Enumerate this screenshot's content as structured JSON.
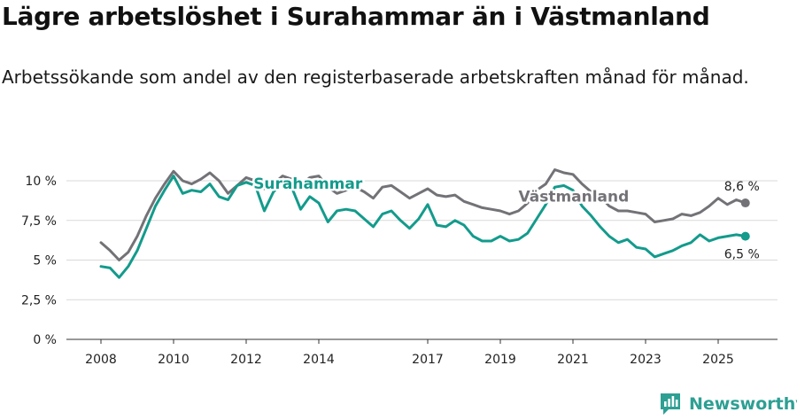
{
  "title": "Lägre arbetslöshet i Surahammar än i Västmanland",
  "subtitle": "Arbetssökande som andel av den registerbaserade arbetskraften månad för månad.",
  "brand": {
    "name": "Newsworthy",
    "icon": "newsworthy-logo-icon",
    "color": "#2d9f93"
  },
  "chart_data": {
    "type": "line",
    "title": "Lägre arbetslöshet i Surahammar än i Västmanland",
    "xlabel": "",
    "ylabel": "",
    "xlim": [
      2007.5,
      2026.4
    ],
    "ylim": [
      0,
      10
    ],
    "grid": true,
    "x_ticks": [
      {
        "value": 2008,
        "label": "2008"
      },
      {
        "value": 2010,
        "label": "2010"
      },
      {
        "value": 2012,
        "label": "2012"
      },
      {
        "value": 2014,
        "label": "2014"
      },
      {
        "value": 2017,
        "label": "2017"
      },
      {
        "value": 2019,
        "label": "2019"
      },
      {
        "value": 2021,
        "label": "2021"
      },
      {
        "value": 2023,
        "label": "2023"
      },
      {
        "value": 2025,
        "label": "2025"
      }
    ],
    "y_ticks": [
      {
        "value": 0,
        "label": "0 %"
      },
      {
        "value": 2.5,
        "label": "2,5 %"
      },
      {
        "value": 5,
        "label": "5 %"
      },
      {
        "value": 7.5,
        "label": "7,5 %"
      },
      {
        "value": 10,
        "label": "10 %"
      }
    ],
    "series": [
      {
        "name": "Västmanland",
        "color": "#737277",
        "label_at": [
          2019.5,
          8.7
        ],
        "end_label": "8,6 %",
        "end_value": 8.6,
        "x": [
          2008.0,
          2008.25,
          2008.5,
          2008.75,
          2009.0,
          2009.25,
          2009.5,
          2009.75,
          2010.0,
          2010.25,
          2010.5,
          2010.75,
          2011.0,
          2011.25,
          2011.5,
          2011.75,
          2012.0,
          2012.25,
          2012.5,
          2012.75,
          2013.0,
          2013.25,
          2013.5,
          2013.75,
          2014.0,
          2014.25,
          2014.5,
          2014.75,
          2015.0,
          2015.25,
          2015.5,
          2015.75,
          2016.0,
          2016.25,
          2016.5,
          2016.75,
          2017.0,
          2017.25,
          2017.5,
          2017.75,
          2018.0,
          2018.25,
          2018.5,
          2018.75,
          2019.0,
          2019.25,
          2019.5,
          2019.75,
          2020.0,
          2020.25,
          2020.5,
          2020.75,
          2021.0,
          2021.25,
          2021.5,
          2021.75,
          2022.0,
          2022.25,
          2022.5,
          2022.75,
          2023.0,
          2023.25,
          2023.5,
          2023.75,
          2024.0,
          2024.25,
          2024.5,
          2024.75,
          2025.0,
          2025.25,
          2025.5,
          2025.75
        ],
        "values": [
          6.1,
          5.6,
          5.0,
          5.5,
          6.5,
          7.8,
          8.9,
          9.8,
          10.6,
          10.0,
          9.8,
          10.1,
          10.5,
          10.0,
          9.2,
          9.7,
          10.2,
          10.0,
          9.5,
          9.8,
          10.3,
          10.1,
          9.7,
          10.2,
          10.3,
          9.6,
          9.2,
          9.4,
          9.6,
          9.3,
          8.9,
          9.6,
          9.7,
          9.3,
          8.9,
          9.2,
          9.5,
          9.1,
          9.0,
          9.1,
          8.7,
          8.5,
          8.3,
          8.2,
          8.1,
          7.9,
          8.1,
          8.6,
          9.4,
          9.8,
          10.7,
          10.5,
          10.4,
          9.8,
          9.3,
          9.0,
          8.4,
          8.1,
          8.1,
          8.0,
          7.9,
          7.4,
          7.5,
          7.6,
          7.9,
          7.8,
          8.0,
          8.4,
          8.9,
          8.5,
          8.8,
          8.6
        ]
      },
      {
        "name": "Surahammar",
        "color": "#139b8c",
        "label_at": [
          2012.2,
          9.5
        ],
        "end_label": "6,5 %",
        "end_value": 6.5,
        "x": [
          2008.0,
          2008.25,
          2008.5,
          2008.75,
          2009.0,
          2009.25,
          2009.5,
          2009.75,
          2010.0,
          2010.25,
          2010.5,
          2010.75,
          2011.0,
          2011.25,
          2011.5,
          2011.75,
          2012.0,
          2012.25,
          2012.5,
          2012.75,
          2013.0,
          2013.25,
          2013.5,
          2013.75,
          2014.0,
          2014.25,
          2014.5,
          2014.75,
          2015.0,
          2015.25,
          2015.5,
          2015.75,
          2016.0,
          2016.25,
          2016.5,
          2016.75,
          2017.0,
          2017.25,
          2017.5,
          2017.75,
          2018.0,
          2018.25,
          2018.5,
          2018.75,
          2019.0,
          2019.25,
          2019.5,
          2019.75,
          2020.0,
          2020.25,
          2020.5,
          2020.75,
          2021.0,
          2021.25,
          2021.5,
          2021.75,
          2022.0,
          2022.25,
          2022.5,
          2022.75,
          2023.0,
          2023.25,
          2023.5,
          2023.75,
          2024.0,
          2024.25,
          2024.5,
          2024.75,
          2025.0,
          2025.25,
          2025.5,
          2025.75
        ],
        "values": [
          4.6,
          4.5,
          3.9,
          4.6,
          5.6,
          7.0,
          8.4,
          9.4,
          10.3,
          9.2,
          9.4,
          9.3,
          9.8,
          9.0,
          8.8,
          9.7,
          9.9,
          9.7,
          8.1,
          9.3,
          9.8,
          9.6,
          8.2,
          9.0,
          8.6,
          7.4,
          8.1,
          8.2,
          8.1,
          7.6,
          7.1,
          7.9,
          8.1,
          7.5,
          7.0,
          7.6,
          8.5,
          7.2,
          7.1,
          7.5,
          7.2,
          6.5,
          6.2,
          6.2,
          6.5,
          6.2,
          6.3,
          6.7,
          7.6,
          8.5,
          9.6,
          9.7,
          9.4,
          8.4,
          7.8,
          7.1,
          6.5,
          6.1,
          6.3,
          5.8,
          5.7,
          5.2,
          5.4,
          5.6,
          5.9,
          6.1,
          6.6,
          6.2,
          6.4,
          6.5,
          6.6,
          6.5
        ]
      }
    ]
  }
}
